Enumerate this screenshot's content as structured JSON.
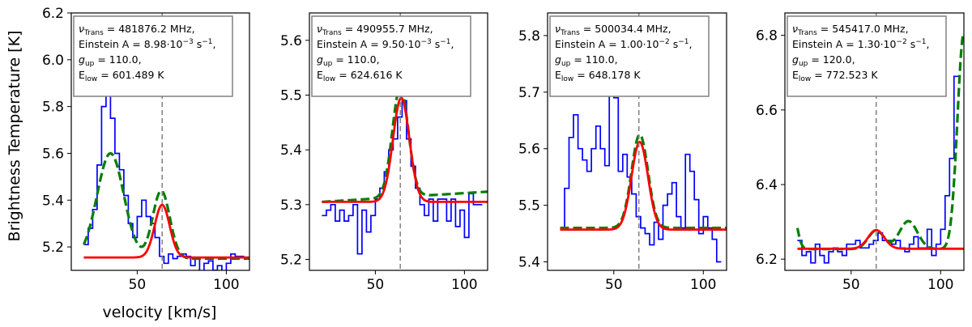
{
  "figure": {
    "ylabel": "Brightness Temperature [K]",
    "xlabel": "velocity [km/s]"
  },
  "colors": {
    "observed": "#0000ff",
    "model_dashed": "#007f00",
    "fit": "#ff0000",
    "vline": "#808080"
  },
  "chart_data": [
    {
      "type": "line",
      "xlim": [
        13,
        113
      ],
      "ylim": [
        5.1,
        6.2
      ],
      "xticks": [
        50,
        100
      ],
      "yticks": [
        5.2,
        5.4,
        5.6,
        5.8,
        6.0,
        6.2
      ],
      "yticklabels": [
        "5.2",
        "5.4",
        "5.6",
        "5.8",
        "6.0",
        "6.2"
      ],
      "vline": 64,
      "annotation": {
        "freq": "481876.2 MHz,",
        "einstein": "8.98",
        "exp": "−3",
        "gup": "110.0,",
        "elow": "601.489 K"
      },
      "observed": {
        "x0": 20,
        "step": 2.5,
        "y": [
          5.21,
          5.28,
          5.36,
          5.55,
          5.8,
          5.85,
          5.75,
          5.6,
          5.53,
          5.42,
          5.3,
          5.24,
          5.33,
          5.4,
          5.33,
          5.3,
          5.24,
          5.16,
          5.13,
          5.17,
          5.15,
          5.16,
          5.17,
          5.16,
          5.12,
          5.15,
          5.09,
          5.13,
          5.14,
          5.1,
          5.12,
          5.08,
          5.13,
          5.17,
          5.16,
          5.16
        ]
      },
      "model": {
        "base": 5.15,
        "slope": 0.0,
        "comps": [
          [
            35,
            0.45,
            7.5
          ],
          [
            63.5,
            0.29,
            4.8
          ]
        ]
      },
      "fit": {
        "base": 5.155,
        "comps": [
          [
            64,
            0.225,
            4.2
          ]
        ]
      }
    },
    {
      "type": "line",
      "xlim": [
        13,
        113
      ],
      "ylim": [
        5.18,
        5.65
      ],
      "xticks": [
        50,
        100
      ],
      "yticks": [
        5.2,
        5.3,
        5.4,
        5.5,
        5.6
      ],
      "yticklabels": [
        "5.2",
        "5.3",
        "5.4",
        "5.5",
        "5.6"
      ],
      "vline": 64,
      "annotation": {
        "freq": "490955.7 MHz,",
        "einstein": "9.50",
        "exp": "−3",
        "gup": "110.0,",
        "elow": "624.616 K"
      },
      "observed": {
        "x0": 20,
        "step": 2.5,
        "y": [
          5.28,
          5.29,
          5.3,
          5.27,
          5.29,
          5.27,
          5.28,
          5.3,
          5.21,
          5.29,
          5.25,
          5.28,
          5.31,
          5.33,
          5.36,
          5.4,
          5.42,
          5.46,
          5.49,
          5.42,
          5.37,
          5.33,
          5.3,
          5.28,
          5.31,
          5.27,
          5.31,
          5.31,
          5.27,
          5.31,
          5.26,
          5.29,
          5.24,
          5.32,
          5.3,
          5.3
        ]
      },
      "model": {
        "base": 5.305,
        "slope": 0.0002,
        "comps": [
          [
            64,
            0.2,
            4.5
          ]
        ]
      },
      "fit": {
        "base": 5.305,
        "comps": [
          [
            64.5,
            0.19,
            4.6
          ]
        ]
      }
    },
    {
      "type": "line",
      "xlim": [
        13,
        113
      ],
      "ylim": [
        5.385,
        5.84
      ],
      "xticks": [
        50,
        100
      ],
      "yticks": [
        5.4,
        5.5,
        5.6,
        5.7,
        5.8
      ],
      "yticklabels": [
        "5.4",
        "5.5",
        "5.6",
        "5.7",
        "5.8"
      ],
      "vline": 64,
      "annotation": {
        "freq": "500034.4 MHz,",
        "einstein": "1.00",
        "exp": "−2",
        "gup": "110.0,",
        "elow": "648.178 K"
      },
      "observed": {
        "x0": 20,
        "step": 2.5,
        "y": [
          5.46,
          5.53,
          5.62,
          5.66,
          5.6,
          5.58,
          5.56,
          5.6,
          5.64,
          5.6,
          5.57,
          5.71,
          5.69,
          5.56,
          5.59,
          5.55,
          5.52,
          5.48,
          5.46,
          5.45,
          5.43,
          5.47,
          5.44,
          5.5,
          5.52,
          5.54,
          5.48,
          5.46,
          5.59,
          5.56,
          5.51,
          5.45,
          5.48,
          5.46,
          5.44,
          5.4
        ]
      },
      "model": {
        "base": 5.46,
        "slope": 0.0,
        "comps": [
          [
            64.5,
            0.165,
            4.6
          ]
        ]
      },
      "fit": {
        "base": 5.457,
        "comps": [
          [
            64.5,
            0.155,
            4.6
          ]
        ]
      }
    },
    {
      "type": "line",
      "xlim": [
        13,
        113
      ],
      "ylim": [
        6.17,
        6.86
      ],
      "xticks": [
        50,
        100
      ],
      "yticks": [
        6.2,
        6.4,
        6.6,
        6.8
      ],
      "yticklabels": [
        "6.2",
        "6.4",
        "6.6",
        "6.8"
      ],
      "vline": 64,
      "annotation": {
        "freq": "545417.0 MHz,",
        "einstein": "1.30",
        "exp": "−2",
        "gup": "120.0,",
        "elow": "772.523 K"
      },
      "observed": {
        "x0": 20,
        "step": 2.5,
        "y": [
          6.25,
          6.21,
          6.22,
          6.19,
          6.24,
          6.21,
          6.19,
          6.22,
          6.23,
          6.22,
          6.21,
          6.24,
          6.24,
          6.25,
          6.23,
          6.23,
          6.24,
          6.25,
          6.27,
          6.25,
          6.25,
          6.24,
          6.25,
          6.23,
          6.22,
          6.24,
          6.26,
          6.23,
          6.23,
          6.28,
          6.21,
          6.24,
          6.28,
          6.37,
          6.47,
          6.69
        ]
      },
      "model": {
        "base": 6.227,
        "slope": 0.0,
        "comps": [
          [
            17,
            0.11,
            2.6
          ],
          [
            64,
            0.05,
            4.4
          ],
          [
            82,
            0.075,
            5.0
          ],
          [
            113,
            0.58,
            3.6
          ]
        ]
      },
      "fit": {
        "base": 6.228,
        "comps": [
          [
            64,
            0.05,
            4.5
          ]
        ]
      }
    }
  ]
}
